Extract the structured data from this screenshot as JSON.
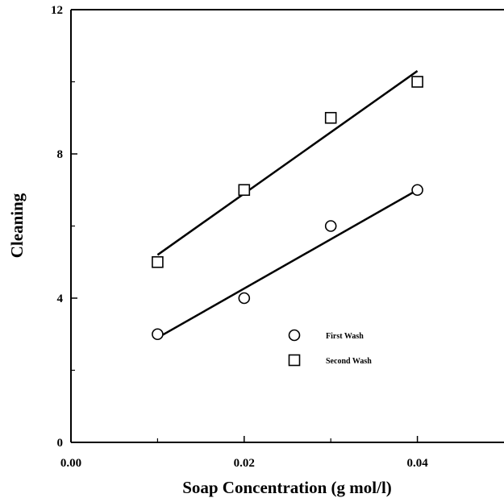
{
  "chart_data": {
    "type": "scatter",
    "title": "",
    "xlabel": "Soap Concentration (g mol/l)",
    "ylabel": "Cleaning",
    "xlim": [
      0,
      0.05
    ],
    "ylim": [
      0,
      12
    ],
    "x_ticks": [
      0.0,
      0.02,
      0.04
    ],
    "x_tick_labels": [
      "0.00",
      "0.02",
      "0.04"
    ],
    "y_ticks": [
      0,
      4,
      8,
      12
    ],
    "y_tick_labels": [
      "0",
      "4",
      "8",
      "12"
    ],
    "grid": false,
    "legend_position": "lower-right",
    "series": [
      {
        "name": "First Wash",
        "marker": "circle",
        "x": [
          0.01,
          0.02,
          0.03,
          0.04
        ],
        "y": [
          3.0,
          4.0,
          6.0,
          7.0
        ],
        "fit_line": {
          "x": [
            0.01,
            0.04
          ],
          "y": [
            2.9,
            7.0
          ]
        }
      },
      {
        "name": "Second Wash",
        "marker": "square",
        "x": [
          0.01,
          0.02,
          0.03,
          0.04
        ],
        "y": [
          5.0,
          7.0,
          9.0,
          10.0
        ],
        "fit_line": {
          "x": [
            0.01,
            0.04
          ],
          "y": [
            5.2,
            10.3
          ]
        }
      }
    ],
    "colors": {
      "ink": "#000000",
      "background": "#ffffff"
    }
  }
}
